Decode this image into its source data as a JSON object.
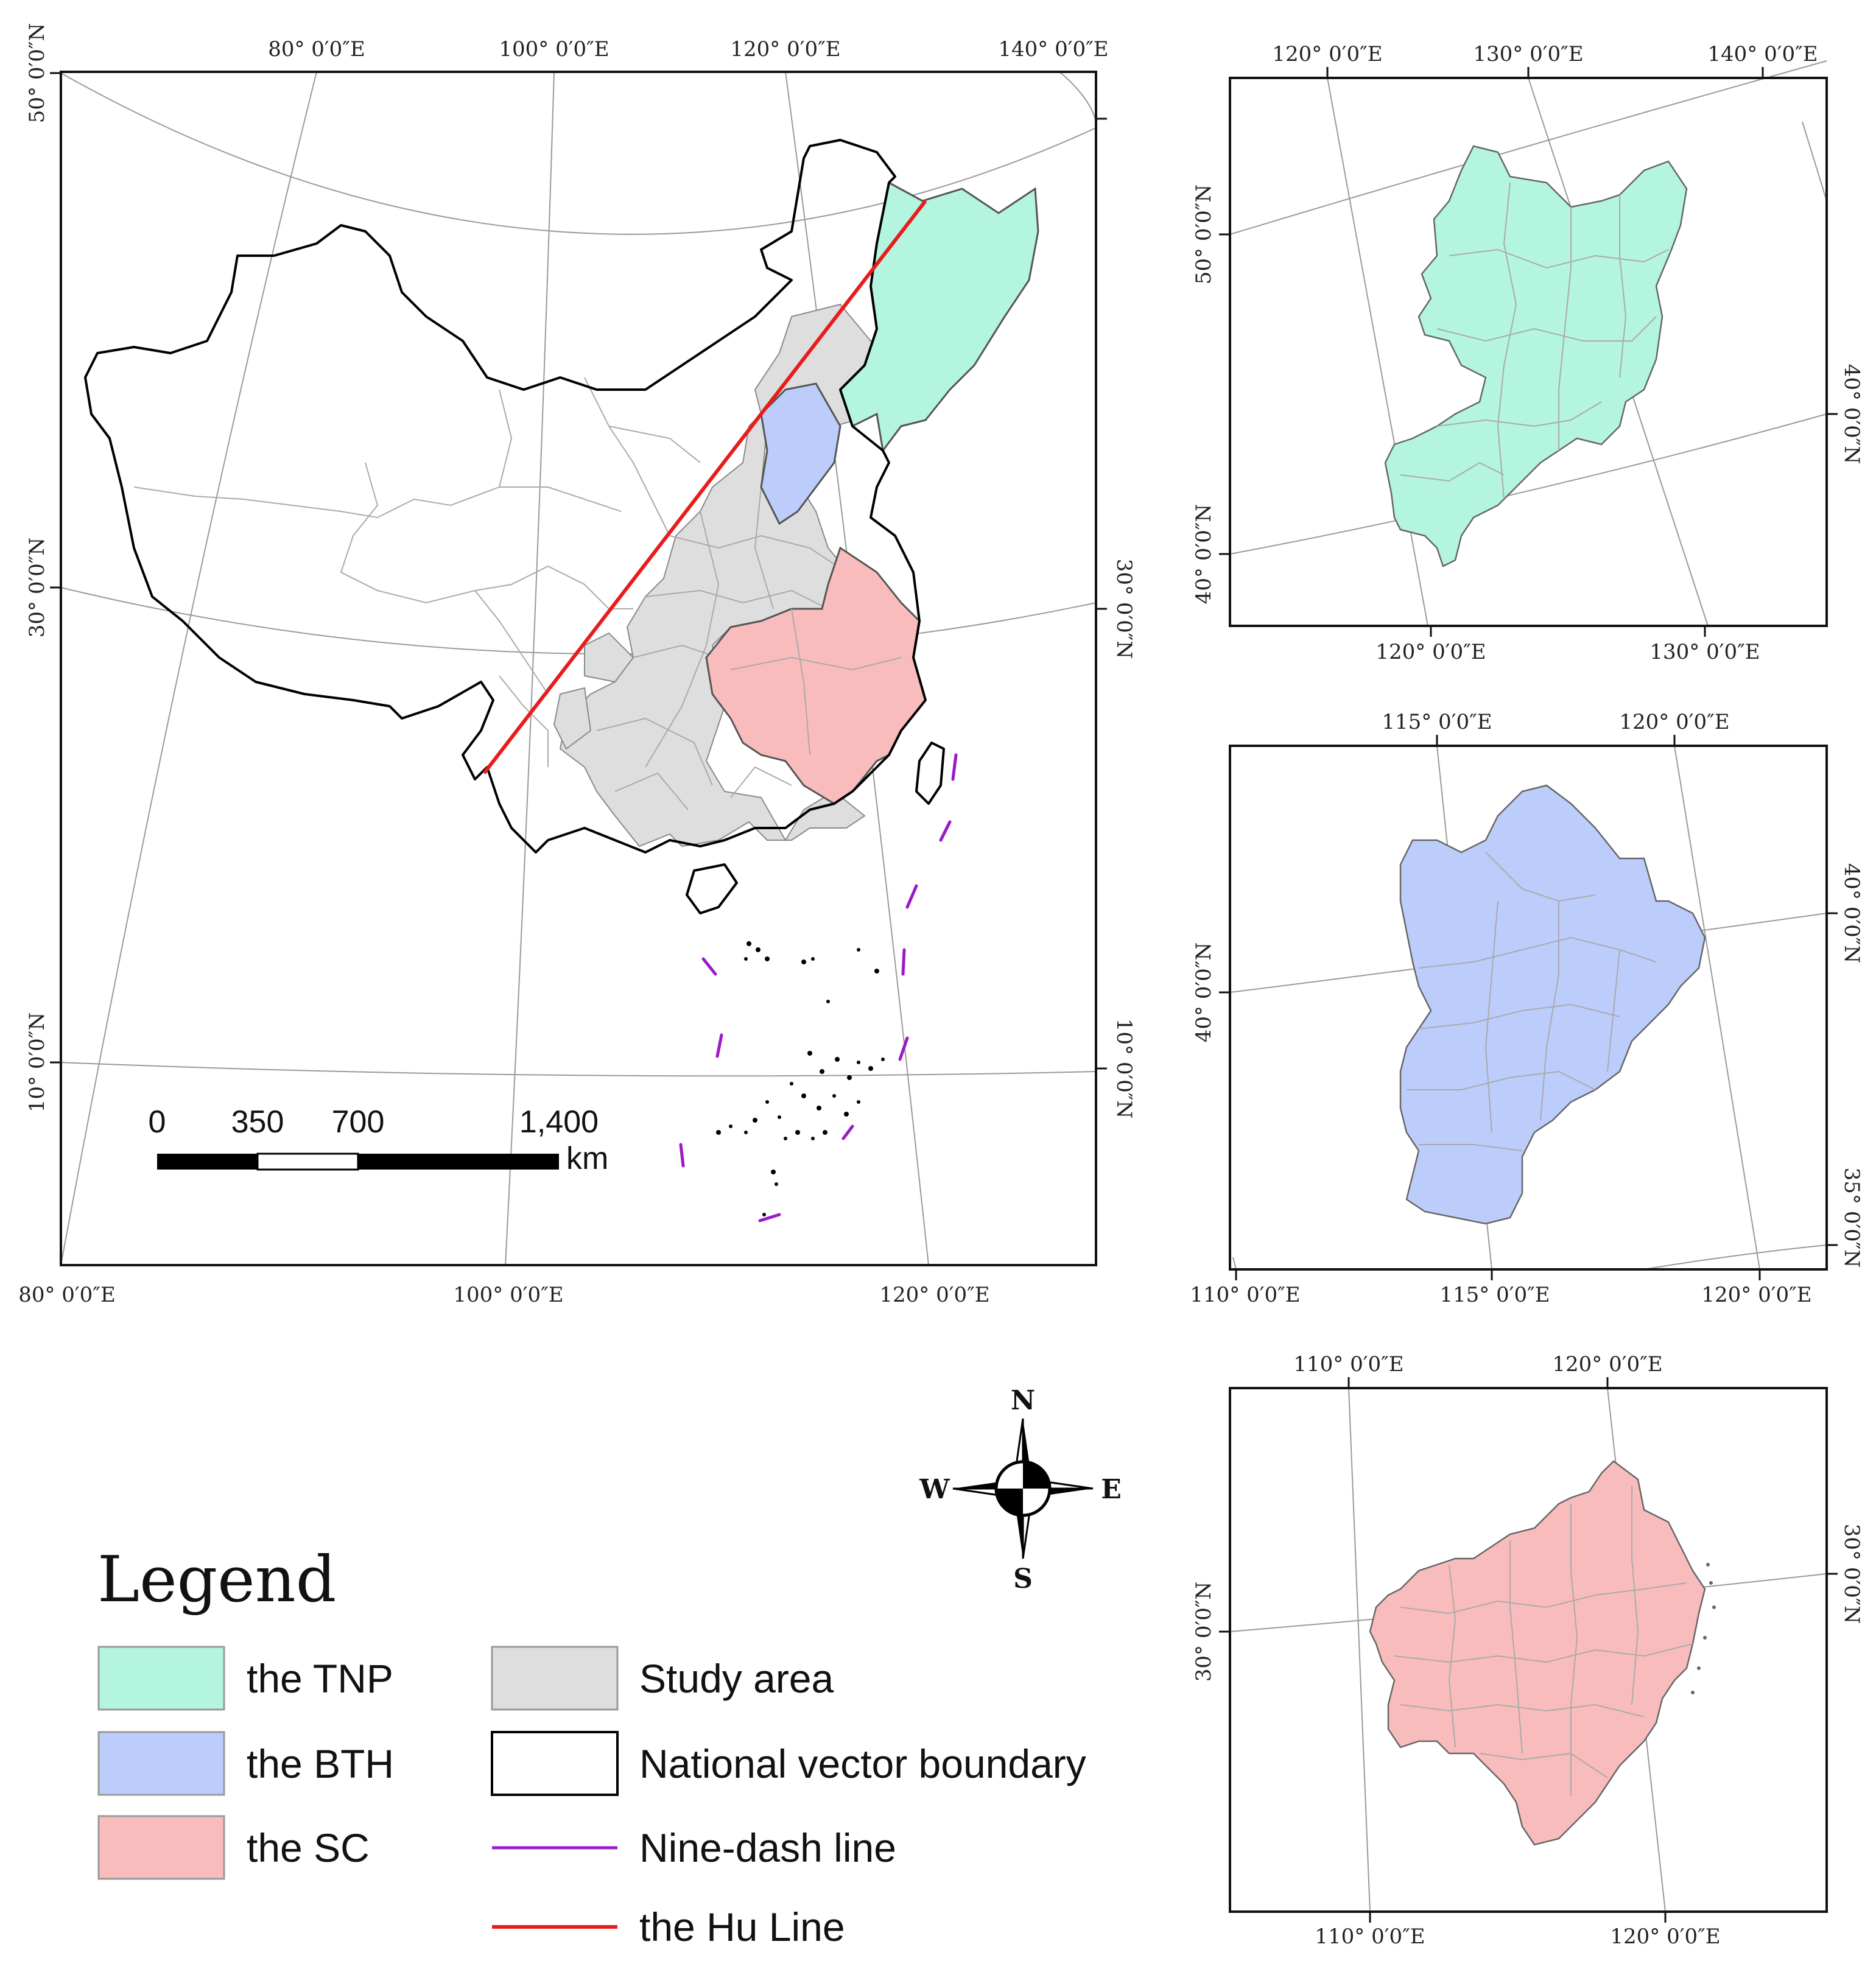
{
  "main_map": {
    "top_labels": [
      "80° 0′0″E",
      "100° 0′0″E",
      "120° 0′0″E",
      "140° 0′0″E"
    ],
    "bottom_labels": [
      "80° 0′0″E",
      "100° 0′0″E",
      "120° 0′0″E"
    ],
    "left_labels": [
      "50° 0′0″N",
      "30° 0′0″N",
      "10° 0′0″N"
    ],
    "right_labels": [
      "30° 0′0″N",
      "10° 0′0″N"
    ]
  },
  "scale_bar": {
    "ticks": [
      "0",
      "350",
      "700",
      "1,400"
    ],
    "unit": "km"
  },
  "inset_tnp": {
    "top_labels": [
      "120° 0′0″E",
      "130° 0′0″E",
      "140° 0′0″E"
    ],
    "bottom_labels": [
      "120° 0′0″E",
      "130° 0′0″E"
    ],
    "left_labels": [
      "50° 0′0″N",
      "40° 0′0″N"
    ],
    "right_labels": [
      "40° 0′0″N"
    ]
  },
  "inset_bth": {
    "top_labels": [
      "115° 0′0″E",
      "120° 0′0″E"
    ],
    "bottom_labels": [
      "110° 0′0″E",
      "115° 0′0″E",
      "120° 0′0″E"
    ],
    "left_labels": [
      "40° 0′0″N"
    ],
    "right_labels": [
      "40° 0′0″N",
      "35° 0′0″N"
    ]
  },
  "inset_sc": {
    "top_labels": [
      "110° 0′0″E",
      "120° 0′0″E"
    ],
    "bottom_labels": [
      "110° 0′0″E",
      "120° 0′0″E"
    ],
    "left_labels": [
      "30° 0′0″N"
    ],
    "right_labels": [
      "30° 0′0″N"
    ]
  },
  "compass": {
    "n": "N",
    "s": "S",
    "e": "E",
    "w": "W"
  },
  "legend": {
    "title": "Legend",
    "items": [
      {
        "label": "the TNP",
        "color": "#b3f5df"
      },
      {
        "label": "the BTH",
        "color": "#bccdfb"
      },
      {
        "label": "the SC",
        "color": "#f9bcbc"
      },
      {
        "label": "Study area",
        "color": "#dedede"
      },
      {
        "label": "National vector boundary",
        "color": "#ffffff"
      },
      {
        "label": "Nine-dash line",
        "color": "#9b19c8"
      },
      {
        "label": "the Hu Line",
        "color": "#e81c1c"
      }
    ]
  }
}
